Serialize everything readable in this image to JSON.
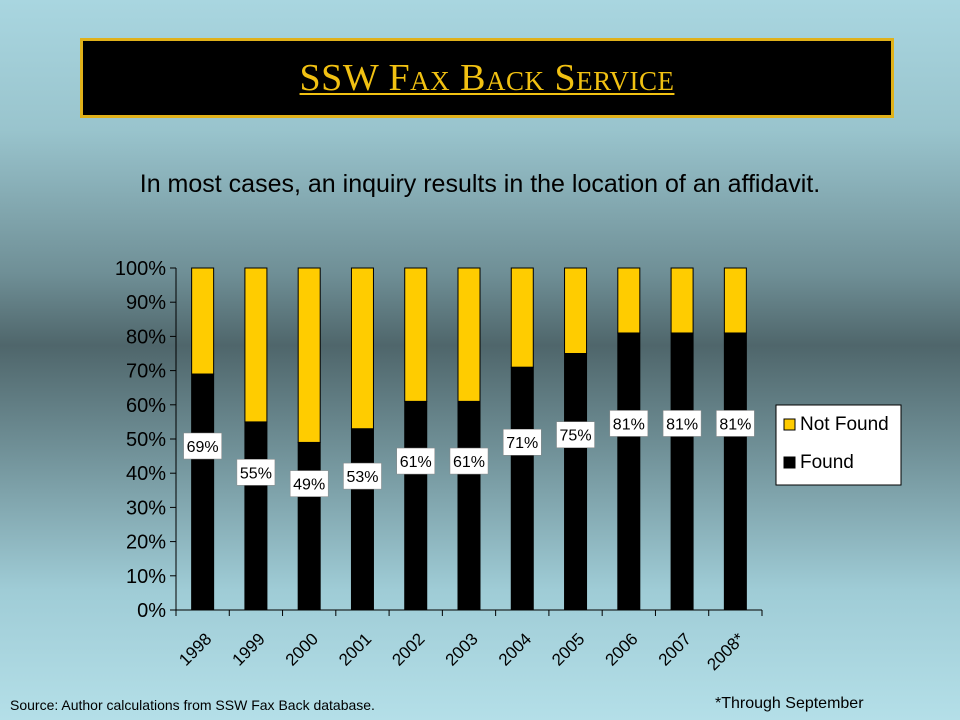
{
  "slide": {
    "title": "SSW Fax Back Service",
    "subtitle": "In most cases, an inquiry results in the location of an affidavit.",
    "source": "Source: Author calculations from SSW Fax Back database.",
    "footnote": "*Through September"
  },
  "colors": {
    "found": "#000000",
    "not_found": "#ffcc00",
    "title_text": "#f1c112",
    "title_border": "#e0b11a"
  },
  "chart_data": {
    "type": "bar",
    "stacked": true,
    "categories": [
      "1998",
      "1999",
      "2000",
      "2001",
      "2002",
      "2003",
      "2004",
      "2005",
      "2006",
      "2007",
      "2008*"
    ],
    "series": [
      {
        "name": "Found",
        "values": [
          69,
          55,
          49,
          53,
          61,
          61,
          71,
          75,
          81,
          81,
          81
        ],
        "color": "#000000"
      },
      {
        "name": "Not Found",
        "values": [
          31,
          45,
          51,
          47,
          39,
          39,
          29,
          25,
          19,
          19,
          19
        ],
        "color": "#ffcc00"
      }
    ],
    "data_labels": [
      "69%",
      "55%",
      "49%",
      "53%",
      "61%",
      "61%",
      "71%",
      "75%",
      "81%",
      "81%",
      "81%"
    ],
    "y_ticks": [
      "0%",
      "10%",
      "20%",
      "30%",
      "40%",
      "50%",
      "60%",
      "70%",
      "80%",
      "90%",
      "100%"
    ],
    "ylim": [
      0,
      100
    ],
    "legend": {
      "position": "right",
      "entries": [
        "Not Found",
        "Found"
      ]
    },
    "grid": false
  }
}
